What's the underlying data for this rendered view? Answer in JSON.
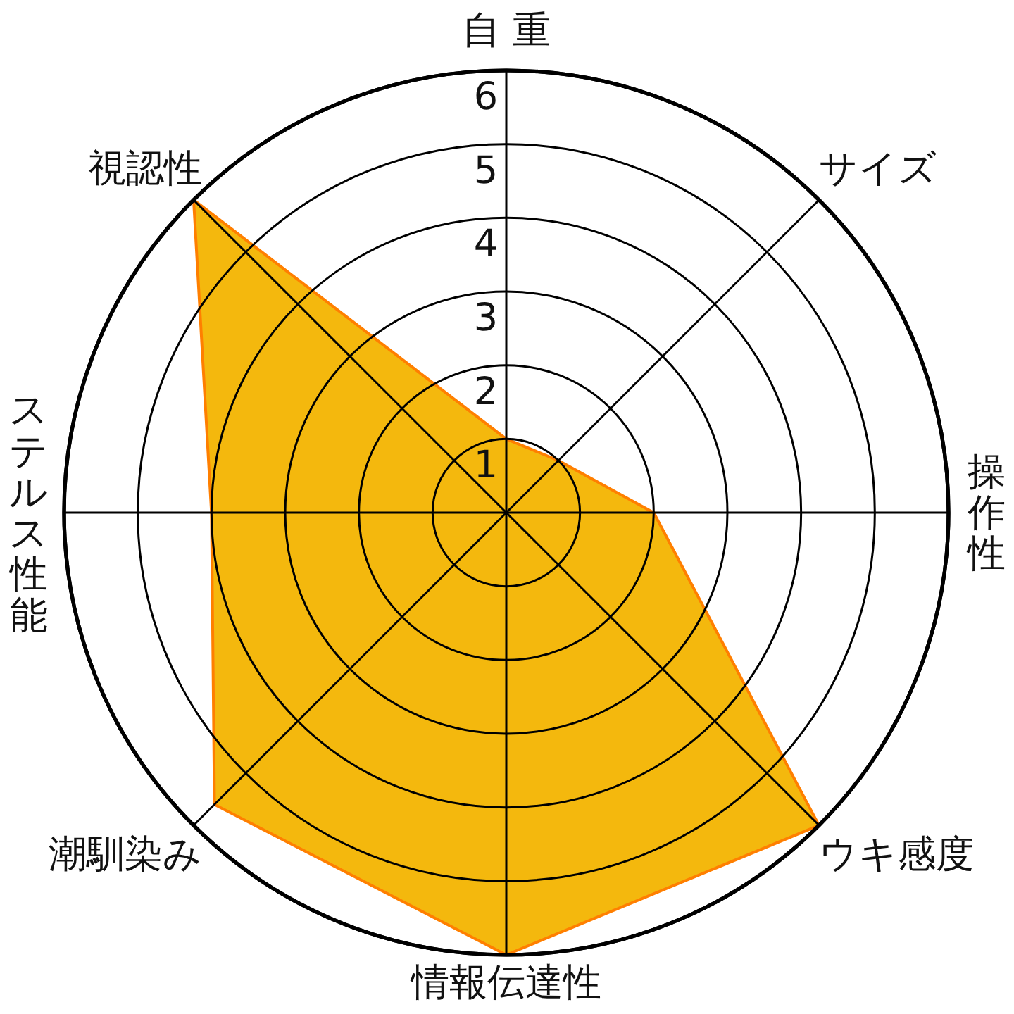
{
  "chart_data": {
    "type": "radar",
    "categories": [
      "自 重",
      "サイズ",
      "操作性",
      "ウキ感度",
      "情報伝達性",
      "潮馴染み",
      "ステルス性能",
      "視認性"
    ],
    "series": [
      {
        "color": "#f4b80d",
        "values": [
          1,
          1,
          2,
          6,
          6,
          5.6,
          4,
          6
        ]
      }
    ],
    "ylim": [
      0,
      6
    ],
    "yticks": [
      1,
      2,
      3,
      4,
      5,
      6
    ],
    "grid": true
  }
}
